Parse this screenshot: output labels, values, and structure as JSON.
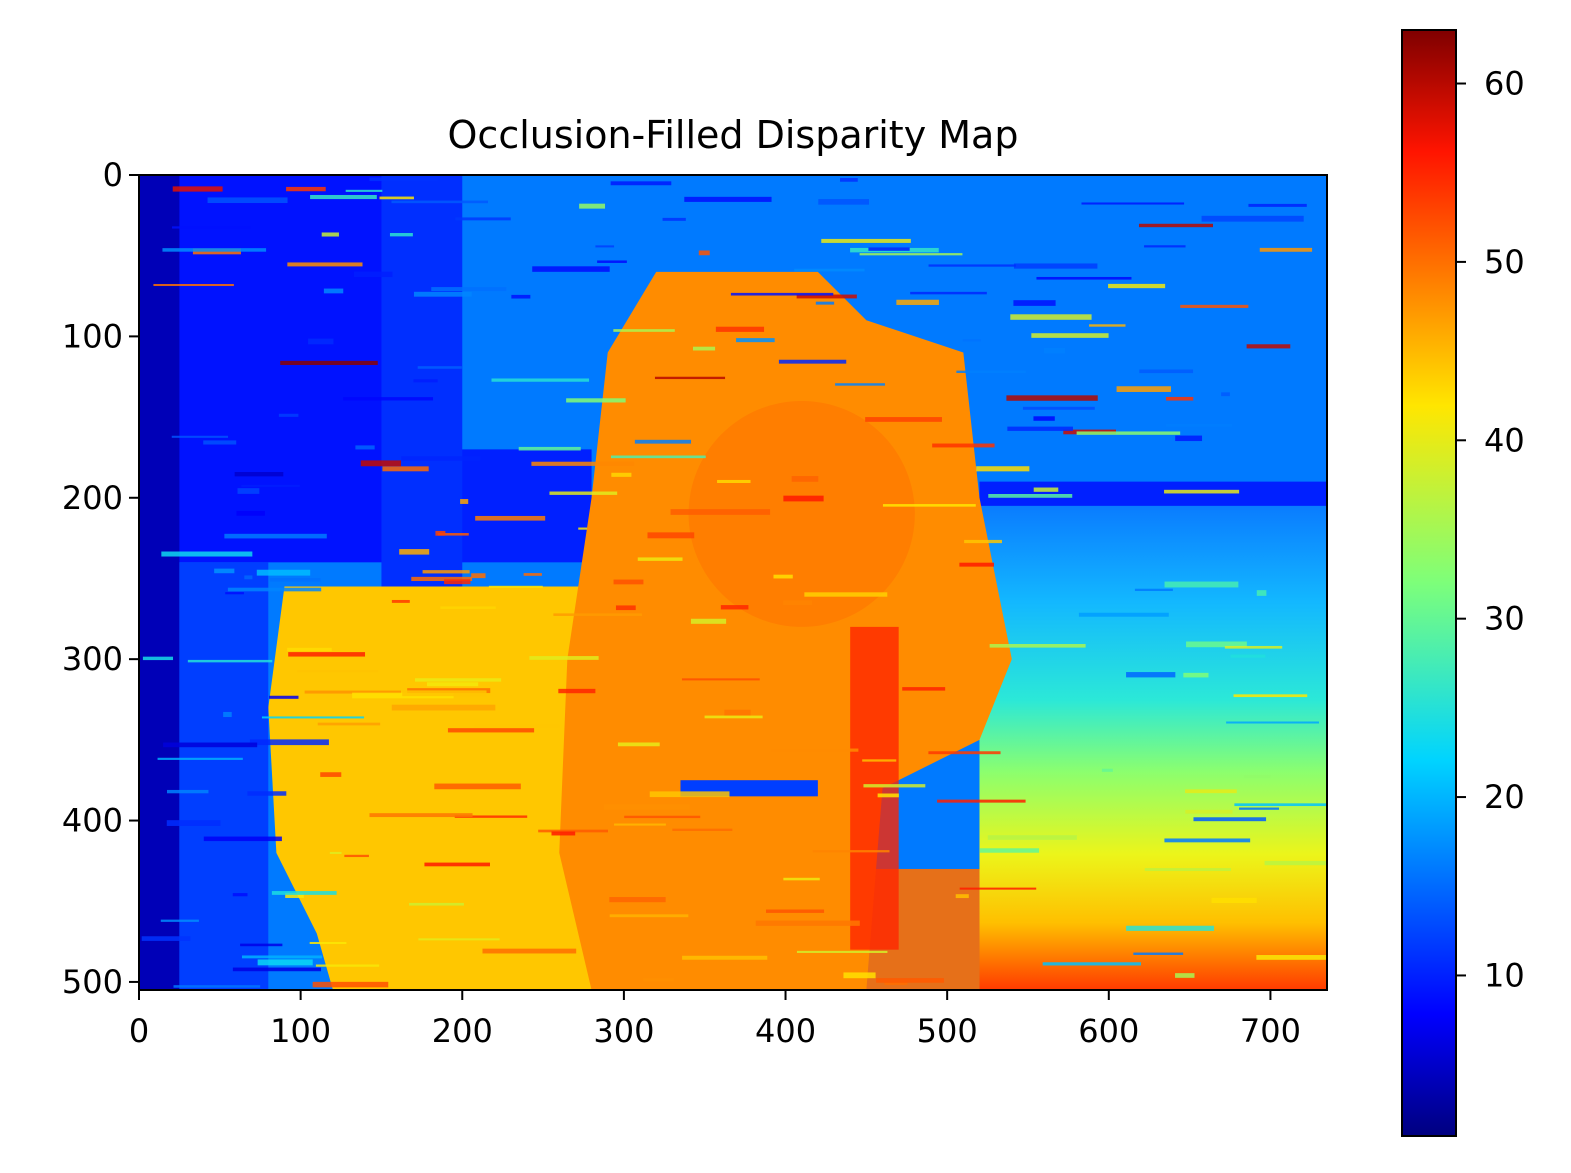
{
  "chart_data": {
    "type": "heatmap",
    "title": "Occlusion-Filled Disparity Map",
    "xlabel": "",
    "ylabel": "",
    "xlim": [
      0,
      735
    ],
    "ylim": [
      505,
      0
    ],
    "x_ticks": [
      0,
      100,
      200,
      300,
      400,
      500,
      600,
      700
    ],
    "y_ticks": [
      0,
      100,
      200,
      300,
      400,
      500
    ],
    "x_tick_labels": [
      "0",
      "100",
      "200",
      "300",
      "400",
      "500",
      "600",
      "700"
    ],
    "y_tick_labels": [
      "0",
      "100",
      "200",
      "300",
      "400",
      "500"
    ],
    "colormap": "jet",
    "colorbar": {
      "range": [
        1,
        63
      ],
      "ticks": [
        10,
        20,
        30,
        40,
        50,
        60
      ],
      "tick_labels": [
        "10",
        "20",
        "30",
        "40",
        "50",
        "60"
      ]
    },
    "regions": [
      {
        "name": "background-upper",
        "x": [
          0,
          735
        ],
        "y": [
          0,
          175
        ],
        "value": 16
      },
      {
        "name": "background-left-dark",
        "x": [
          0,
          180
        ],
        "y": [
          0,
          240
        ],
        "value": 9
      },
      {
        "name": "left-edge",
        "x": [
          0,
          25
        ],
        "y": [
          0,
          505
        ],
        "value": 4
      },
      {
        "name": "band-200",
        "x": [
          520,
          735
        ],
        "y": [
          190,
          205
        ],
        "value": 10
      },
      {
        "name": "object-center",
        "x": [
          280,
          520
        ],
        "y": [
          60,
          505
        ],
        "value": 48
      },
      {
        "name": "object-left",
        "x": [
          85,
          300
        ],
        "y": [
          250,
          505
        ],
        "value": 44
      },
      {
        "name": "floor-gradient-top",
        "x": [
          520,
          735
        ],
        "y": [
          220,
          220
        ],
        "value": 14
      },
      {
        "name": "floor-gradient-mid",
        "x": [
          520,
          735
        ],
        "y": [
          330,
          330
        ],
        "value": 28
      },
      {
        "name": "floor-gradient-low",
        "x": [
          520,
          735
        ],
        "y": [
          420,
          420
        ],
        "value": 40
      },
      {
        "name": "floor-gradient-bottom",
        "x": [
          520,
          735
        ],
        "y": [
          505,
          505
        ],
        "value": 54
      },
      {
        "name": "red-streak",
        "x": [
          440,
          470
        ],
        "y": [
          280,
          480
        ],
        "value": 55
      },
      {
        "name": "blue-bar",
        "x": [
          335,
          420
        ],
        "y": [
          375,
          385
        ],
        "value": 12
      }
    ]
  }
}
